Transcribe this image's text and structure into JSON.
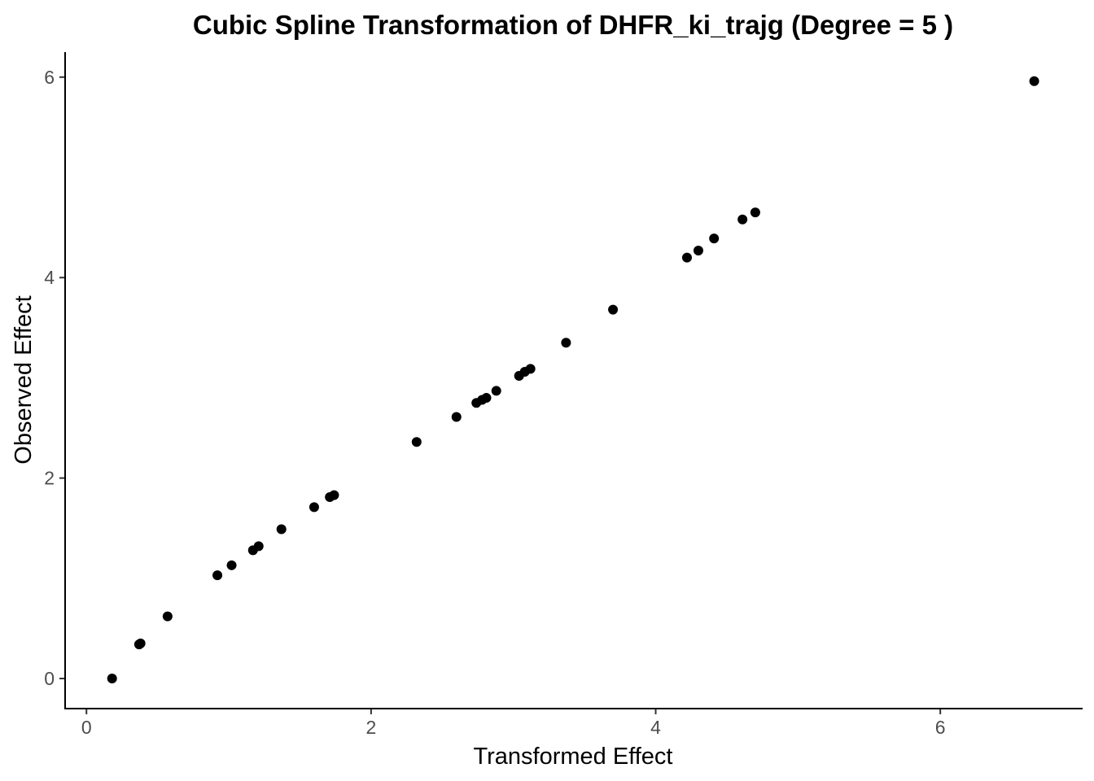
{
  "chart_data": {
    "type": "scatter",
    "title": "Cubic Spline Transformation of DHFR_ki_trajg (Degree = 5 )",
    "xlabel": "Transformed Effect",
    "ylabel": "Observed Effect",
    "xlim": [
      -0.15,
      7.0
    ],
    "ylim": [
      -0.3,
      6.25
    ],
    "xticks": [
      0,
      2,
      4,
      6
    ],
    "yticks": [
      0,
      2,
      4,
      6
    ],
    "xtick_labels": [
      "0",
      "2",
      "4",
      "6"
    ],
    "ytick_labels": [
      "0",
      "2",
      "4",
      "6"
    ],
    "grid": false,
    "legend": "none",
    "point_color": "#000000",
    "points": [
      {
        "x": 0.18,
        "y": 0.0
      },
      {
        "x": 0.37,
        "y": 0.34
      },
      {
        "x": 0.38,
        "y": 0.35
      },
      {
        "x": 0.57,
        "y": 0.62
      },
      {
        "x": 0.92,
        "y": 1.03
      },
      {
        "x": 1.02,
        "y": 1.13
      },
      {
        "x": 1.17,
        "y": 1.28
      },
      {
        "x": 1.21,
        "y": 1.32
      },
      {
        "x": 1.37,
        "y": 1.49
      },
      {
        "x": 1.6,
        "y": 1.71
      },
      {
        "x": 1.71,
        "y": 1.81
      },
      {
        "x": 1.74,
        "y": 1.83
      },
      {
        "x": 2.32,
        "y": 2.36
      },
      {
        "x": 2.6,
        "y": 2.61
      },
      {
        "x": 2.74,
        "y": 2.75
      },
      {
        "x": 2.78,
        "y": 2.78
      },
      {
        "x": 2.81,
        "y": 2.8
      },
      {
        "x": 2.88,
        "y": 2.87
      },
      {
        "x": 3.04,
        "y": 3.02
      },
      {
        "x": 3.08,
        "y": 3.06
      },
      {
        "x": 3.12,
        "y": 3.09
      },
      {
        "x": 3.37,
        "y": 3.35
      },
      {
        "x": 3.7,
        "y": 3.68
      },
      {
        "x": 4.22,
        "y": 4.2
      },
      {
        "x": 4.3,
        "y": 4.27
      },
      {
        "x": 4.41,
        "y": 4.39
      },
      {
        "x": 4.61,
        "y": 4.58
      },
      {
        "x": 4.7,
        "y": 4.65
      },
      {
        "x": 6.66,
        "y": 5.96
      }
    ]
  }
}
